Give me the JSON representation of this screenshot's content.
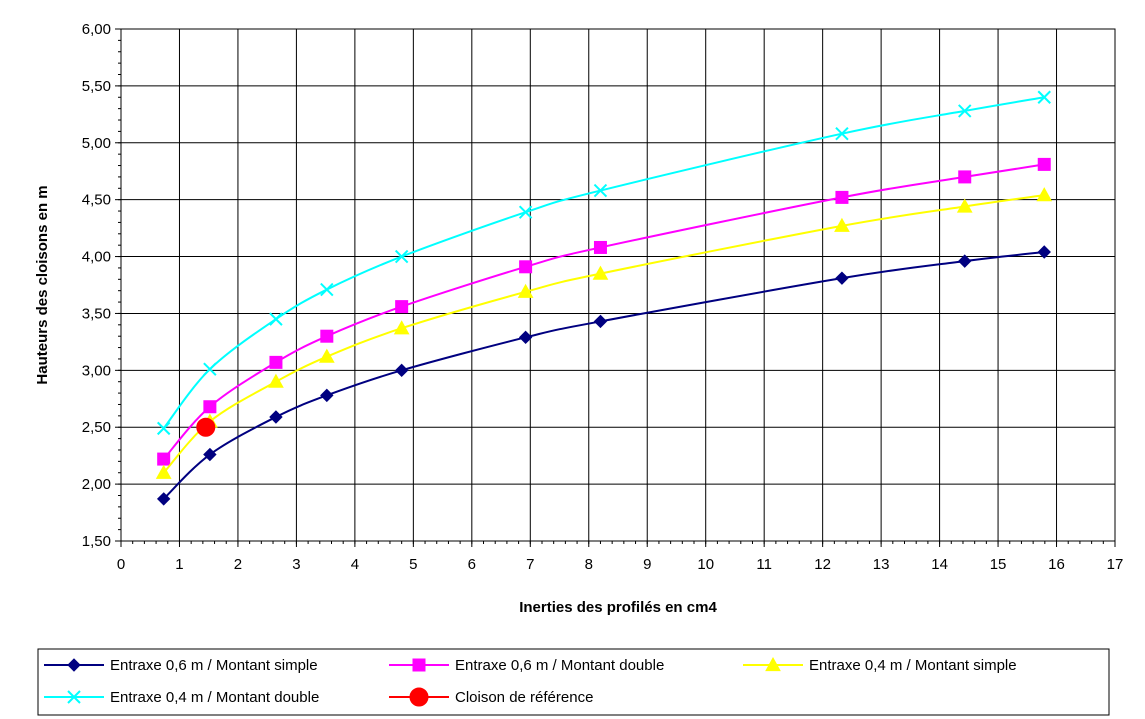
{
  "chart_data": {
    "type": "line",
    "xlabel": "Inerties des profilés en cm4",
    "ylabel": "Hauteurs des cloisons en m",
    "xlim": [
      0,
      17
    ],
    "ylim": [
      1.5,
      6.0
    ],
    "x_ticks": [
      "0",
      "1",
      "2",
      "3",
      "4",
      "5",
      "6",
      "7",
      "8",
      "9",
      "10",
      "11",
      "12",
      "13",
      "14",
      "15",
      "16",
      "17"
    ],
    "y_ticks": [
      "1,50",
      "2,00",
      "2,50",
      "3,00",
      "3,50",
      "4,00",
      "4,50",
      "5,00",
      "5,50",
      "6,00"
    ],
    "grid": true,
    "legend_position": "bottom",
    "series": [
      {
        "name": "Entraxe 0,6 m / Montant simple",
        "color": "#000080",
        "marker": "diamond",
        "x": [
          0.73,
          1.52,
          2.65,
          3.52,
          4.8,
          6.92,
          8.2,
          12.33,
          14.43,
          15.79
        ],
        "y": [
          1.87,
          2.26,
          2.59,
          2.78,
          3.0,
          3.29,
          3.43,
          3.81,
          3.96,
          4.04
        ]
      },
      {
        "name": "Entraxe 0,6 m / Montant double",
        "color": "#FF00FF",
        "marker": "square",
        "x": [
          0.73,
          1.52,
          2.65,
          3.52,
          4.8,
          6.92,
          8.2,
          12.33,
          14.43,
          15.79
        ],
        "y": [
          2.22,
          2.68,
          3.07,
          3.3,
          3.56,
          3.91,
          4.08,
          4.52,
          4.7,
          4.81
        ]
      },
      {
        "name": "Entraxe 0,4 m / Montant simple",
        "color": "#FFFF00",
        "marker": "triangle",
        "x": [
          0.73,
          1.52,
          2.65,
          3.52,
          4.8,
          6.92,
          8.2,
          12.33,
          14.43,
          15.79
        ],
        "y": [
          2.1,
          2.55,
          2.9,
          3.12,
          3.37,
          3.69,
          3.85,
          4.27,
          4.44,
          4.54
        ]
      },
      {
        "name": "Entraxe 0,4 m / Montant double",
        "color": "#00FFFF",
        "marker": "x",
        "x": [
          0.73,
          1.52,
          2.65,
          3.52,
          4.8,
          6.92,
          8.2,
          12.33,
          14.43,
          15.79
        ],
        "y": [
          2.49,
          3.01,
          3.45,
          3.71,
          4.0,
          4.39,
          4.58,
          5.08,
          5.28,
          5.4
        ]
      },
      {
        "name": "Cloison de référence",
        "color": "#FF0000",
        "marker": "circle",
        "x": [
          1.45
        ],
        "y": [
          2.5
        ]
      }
    ]
  }
}
